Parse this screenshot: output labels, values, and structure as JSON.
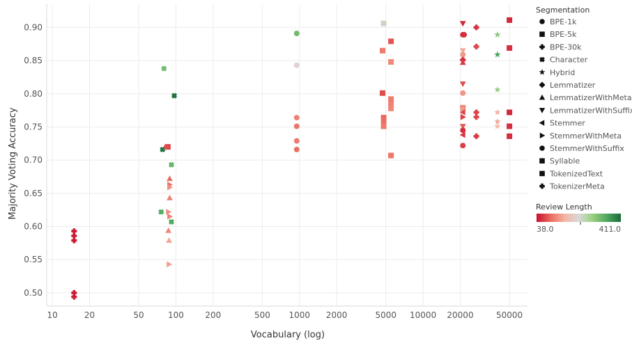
{
  "chart_data": {
    "type": "scatter",
    "xlabel": "Vocabulary (log)",
    "ylabel": "Majority Voting Accuracy",
    "x_scale": "log",
    "xlim": [
      9,
      70000
    ],
    "ylim": [
      0.48,
      0.935
    ],
    "x_ticks": [
      10,
      20,
      50,
      100,
      200,
      500,
      1000,
      2000,
      5000,
      10000,
      20000,
      50000
    ],
    "x_tick_labels": [
      "10",
      "20",
      "50",
      "100",
      "200",
      "500",
      "1000",
      "2000",
      "5000",
      "10000",
      "20000",
      "50000"
    ],
    "y_ticks": [
      0.5,
      0.55,
      0.6,
      0.65,
      0.7,
      0.75,
      0.8,
      0.85,
      0.9
    ],
    "y_tick_labels": [
      "0.50",
      "0.55",
      "0.60",
      "0.65",
      "0.70",
      "0.75",
      "0.80",
      "0.85",
      "0.90"
    ],
    "grid": true,
    "shape_legend": {
      "title": "Segmentation",
      "items": [
        {
          "name": "BPE-1k",
          "shape": "circle"
        },
        {
          "name": "BPE-5k",
          "shape": "square"
        },
        {
          "name": "BPE-30k",
          "shape": "plus"
        },
        {
          "name": "Character",
          "shape": "cross"
        },
        {
          "name": "Hybrid",
          "shape": "star"
        },
        {
          "name": "Lemmatizer",
          "shape": "diamond"
        },
        {
          "name": "LemmatizerWithMeta",
          "shape": "triangle-up"
        },
        {
          "name": "LemmatizerWithSuffix",
          "shape": "triangle-down"
        },
        {
          "name": "Stemmer",
          "shape": "triangle-left"
        },
        {
          "name": "StemmerWithMeta",
          "shape": "triangle-right"
        },
        {
          "name": "StemmerWithSuffix",
          "shape": "circle"
        },
        {
          "name": "Syllable",
          "shape": "square"
        },
        {
          "name": "TokenizedText",
          "shape": "square"
        },
        {
          "name": "TokenizerMeta",
          "shape": "plus"
        }
      ]
    },
    "color_legend": {
      "title": "Review Length",
      "min_label": "38.0",
      "max_label": "411.0",
      "min": 38,
      "max": 411,
      "colors": [
        "#c8102e",
        "#ea6a5f",
        "#f4b5a3",
        "#d9d9d9",
        "#98d07e",
        "#4fa860",
        "#1a6b3a"
      ]
    },
    "points": [
      {
        "x": 15,
        "y": 0.593,
        "shape": "plus",
        "length": 45
      },
      {
        "x": 15,
        "y": 0.586,
        "shape": "plus",
        "length": 45
      },
      {
        "x": 15,
        "y": 0.579,
        "shape": "plus",
        "length": 45
      },
      {
        "x": 15,
        "y": 0.5,
        "shape": "plus",
        "length": 45
      },
      {
        "x": 15,
        "y": 0.494,
        "shape": "plus",
        "length": 45
      },
      {
        "x": 80,
        "y": 0.838,
        "shape": "cross",
        "length": 320
      },
      {
        "x": 97,
        "y": 0.797,
        "shape": "cross",
        "length": 405
      },
      {
        "x": 78,
        "y": 0.716,
        "shape": "cross",
        "length": 400
      },
      {
        "x": 86,
        "y": 0.72,
        "shape": "square",
        "length": 70
      },
      {
        "x": 84,
        "y": 0.72,
        "shape": "circle",
        "length": 80
      },
      {
        "x": 92,
        "y": 0.693,
        "shape": "cross",
        "length": 330
      },
      {
        "x": 76,
        "y": 0.622,
        "shape": "cross",
        "length": 345
      },
      {
        "x": 92,
        "y": 0.607,
        "shape": "cross",
        "length": 350
      },
      {
        "x": 89,
        "y": 0.672,
        "shape": "triangle-up",
        "length": 100
      },
      {
        "x": 89,
        "y": 0.663,
        "shape": "triangle-right",
        "length": 110
      },
      {
        "x": 89,
        "y": 0.659,
        "shape": "triangle-right",
        "length": 130
      },
      {
        "x": 89,
        "y": 0.643,
        "shape": "triangle-up",
        "length": 120
      },
      {
        "x": 87,
        "y": 0.622,
        "shape": "triangle-right",
        "length": 130
      },
      {
        "x": 89,
        "y": 0.615,
        "shape": "triangle-right",
        "length": 120
      },
      {
        "x": 87,
        "y": 0.594,
        "shape": "triangle-up",
        "length": 125
      },
      {
        "x": 88,
        "y": 0.579,
        "shape": "triangle-up",
        "length": 150
      },
      {
        "x": 88,
        "y": 0.543,
        "shape": "triangle-right",
        "length": 145
      },
      {
        "x": 950,
        "y": 0.891,
        "shape": "circle",
        "length": 320
      },
      {
        "x": 950,
        "y": 0.843,
        "shape": "circle",
        "length": 215
      },
      {
        "x": 950,
        "y": 0.764,
        "shape": "circle",
        "length": 120
      },
      {
        "x": 950,
        "y": 0.751,
        "shape": "circle",
        "length": 110
      },
      {
        "x": 950,
        "y": 0.729,
        "shape": "circle",
        "length": 115
      },
      {
        "x": 950,
        "y": 0.716,
        "shape": "circle",
        "length": 105
      },
      {
        "x": 4800,
        "y": 0.906,
        "shape": "square",
        "length": 240
      },
      {
        "x": 4700,
        "y": 0.865,
        "shape": "square",
        "length": 115
      },
      {
        "x": 5500,
        "y": 0.879,
        "shape": "square",
        "length": 85
      },
      {
        "x": 5500,
        "y": 0.848,
        "shape": "square",
        "length": 125
      },
      {
        "x": 4700,
        "y": 0.801,
        "shape": "square",
        "length": 80
      },
      {
        "x": 5500,
        "y": 0.792,
        "shape": "square",
        "length": 115
      },
      {
        "x": 5500,
        "y": 0.785,
        "shape": "square",
        "length": 120
      },
      {
        "x": 5500,
        "y": 0.778,
        "shape": "square",
        "length": 125
      },
      {
        "x": 4800,
        "y": 0.764,
        "shape": "square",
        "length": 100
      },
      {
        "x": 4800,
        "y": 0.758,
        "shape": "square",
        "length": 105
      },
      {
        "x": 4800,
        "y": 0.751,
        "shape": "square",
        "length": 115
      },
      {
        "x": 5500,
        "y": 0.707,
        "shape": "square",
        "length": 110
      },
      {
        "x": 21000,
        "y": 0.906,
        "shape": "triangle-down",
        "length": 55
      },
      {
        "x": 21000,
        "y": 0.889,
        "shape": "circle",
        "length": 55
      },
      {
        "x": 21500,
        "y": 0.889,
        "shape": "circle",
        "length": 60
      },
      {
        "x": 21000,
        "y": 0.865,
        "shape": "triangle-down",
        "length": 150
      },
      {
        "x": 21000,
        "y": 0.859,
        "shape": "circle",
        "length": 140
      },
      {
        "x": 21000,
        "y": 0.851,
        "shape": "diamond",
        "length": 60
      },
      {
        "x": 21000,
        "y": 0.847,
        "shape": "triangle-up",
        "length": 70
      },
      {
        "x": 21000,
        "y": 0.815,
        "shape": "triangle-down",
        "length": 80
      },
      {
        "x": 21000,
        "y": 0.801,
        "shape": "circle",
        "length": 135
      },
      {
        "x": 21000,
        "y": 0.779,
        "shape": "square",
        "length": 125
      },
      {
        "x": 21000,
        "y": 0.776,
        "shape": "circle",
        "length": 140
      },
      {
        "x": 21000,
        "y": 0.772,
        "shape": "triangle-left",
        "length": 75
      },
      {
        "x": 21000,
        "y": 0.765,
        "shape": "triangle-right",
        "length": 70
      },
      {
        "x": 21000,
        "y": 0.751,
        "shape": "triangle-down",
        "length": 90
      },
      {
        "x": 21000,
        "y": 0.745,
        "shape": "circle",
        "length": 60
      },
      {
        "x": 21000,
        "y": 0.738,
        "shape": "triangle-left",
        "length": 65
      },
      {
        "x": 21000,
        "y": 0.722,
        "shape": "circle",
        "length": 70
      },
      {
        "x": 27000,
        "y": 0.9,
        "shape": "plus",
        "length": 60
      },
      {
        "x": 27000,
        "y": 0.871,
        "shape": "plus",
        "length": 75
      },
      {
        "x": 27000,
        "y": 0.772,
        "shape": "plus",
        "length": 70
      },
      {
        "x": 27000,
        "y": 0.765,
        "shape": "plus",
        "length": 75
      },
      {
        "x": 27000,
        "y": 0.736,
        "shape": "plus",
        "length": 65
      },
      {
        "x": 40000,
        "y": 0.889,
        "shape": "star",
        "length": 300
      },
      {
        "x": 40000,
        "y": 0.859,
        "shape": "star",
        "length": 355
      },
      {
        "x": 40000,
        "y": 0.806,
        "shape": "star",
        "length": 290
      },
      {
        "x": 40000,
        "y": 0.772,
        "shape": "star",
        "length": 160
      },
      {
        "x": 40000,
        "y": 0.758,
        "shape": "star",
        "length": 150
      },
      {
        "x": 40000,
        "y": 0.751,
        "shape": "star",
        "length": 165
      },
      {
        "x": 50000,
        "y": 0.911,
        "shape": "square",
        "length": 55
      },
      {
        "x": 50000,
        "y": 0.869,
        "shape": "square",
        "length": 60
      },
      {
        "x": 50000,
        "y": 0.772,
        "shape": "square",
        "length": 55
      },
      {
        "x": 50000,
        "y": 0.751,
        "shape": "square",
        "length": 60
      },
      {
        "x": 50000,
        "y": 0.736,
        "shape": "square",
        "length": 58
      }
    ]
  }
}
